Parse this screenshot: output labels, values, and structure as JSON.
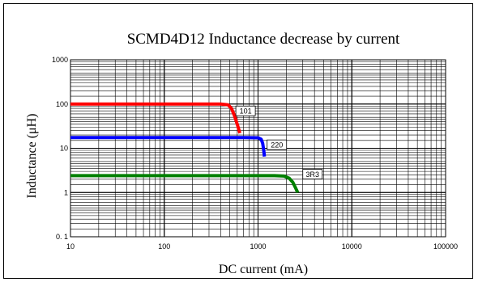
{
  "chart_data": {
    "type": "line",
    "title": "SCMD4D12 Inductance decrease by current",
    "xlabel": "DC current (mA)",
    "ylabel": "Inductance (μH)",
    "xscale": "log",
    "yscale": "log",
    "xlim": [
      10,
      100000
    ],
    "ylim": [
      0.1,
      1000
    ],
    "grid": true,
    "x_ticks": [
      {
        "value": 10,
        "label": "10"
      },
      {
        "value": 100,
        "label": "100"
      },
      {
        "value": 1000,
        "label": "1000"
      },
      {
        "value": 10000,
        "label": "10000"
      },
      {
        "value": 100000,
        "label": "100000"
      }
    ],
    "y_ticks": [
      {
        "value": 0.1,
        "label": "0. 1"
      },
      {
        "value": 1,
        "label": "1"
      },
      {
        "value": 10,
        "label": "10"
      },
      {
        "value": 100,
        "label": "100"
      },
      {
        "value": 1000,
        "label": "1000"
      }
    ],
    "series": [
      {
        "name": "101",
        "color": "#ff0000",
        "x": [
          10,
          100,
          400,
          480,
          520,
          560,
          600,
          640
        ],
        "y": [
          100,
          100,
          100,
          96,
          80,
          55,
          35,
          22
        ],
        "label_at": [
          580,
          70
        ]
      },
      {
        "name": "220",
        "color": "#0000ff",
        "x": [
          10,
          100,
          700,
          1000,
          1080,
          1120,
          1150,
          1170
        ],
        "y": [
          17.5,
          17.5,
          17.5,
          17.3,
          16,
          13,
          9,
          6.5
        ],
        "label_at": [
          1250,
          12
        ]
      },
      {
        "name": "3R3",
        "color": "#008000",
        "x": [
          10,
          100,
          1500,
          1900,
          2150,
          2350,
          2500,
          2650
        ],
        "y": [
          2.4,
          2.4,
          2.4,
          2.35,
          2.1,
          1.7,
          1.3,
          1.0
        ],
        "label_at": [
          3000,
          2.6
        ]
      }
    ]
  }
}
